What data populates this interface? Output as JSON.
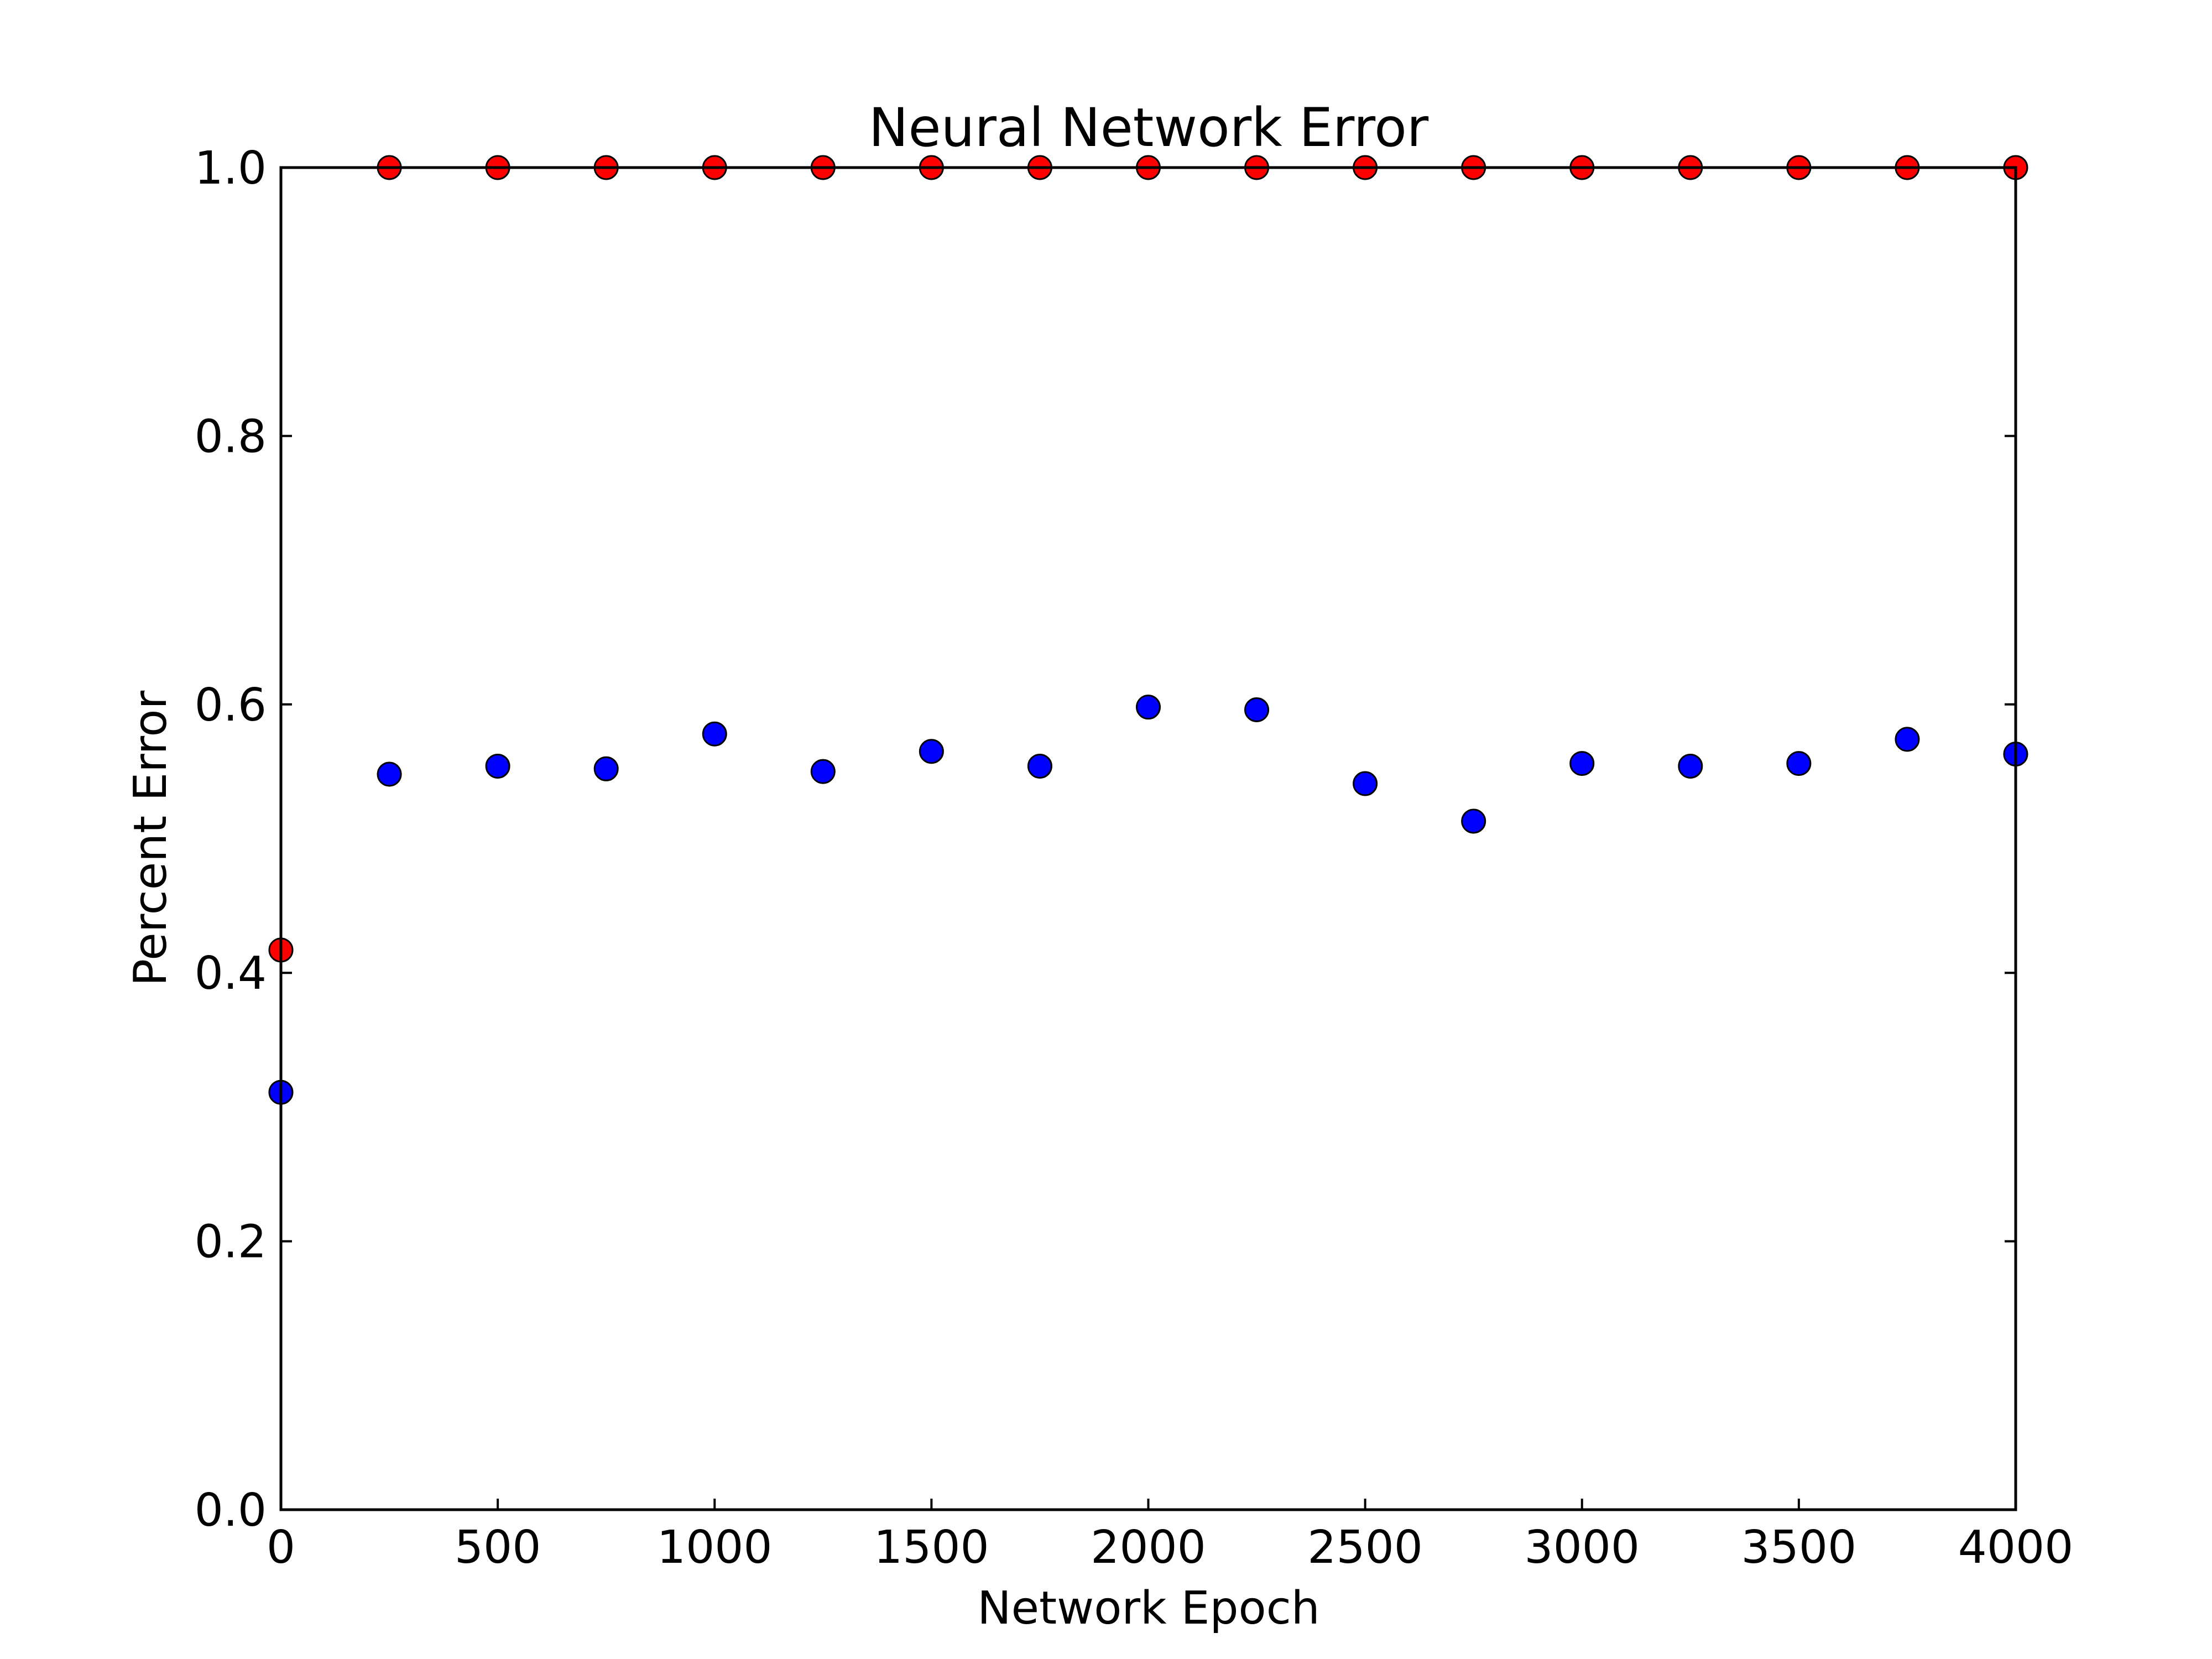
{
  "chart_data": {
    "type": "scatter",
    "title": "Neural Network Error",
    "xlabel": "Network Epoch",
    "ylabel": "Percent Error",
    "xlim": [
      0,
      4000
    ],
    "ylim": [
      0.0,
      1.0
    ],
    "x_ticks": [
      "0",
      "500",
      "1000",
      "1500",
      "2000",
      "2500",
      "3000",
      "3500",
      "4000"
    ],
    "y_ticks": [
      "0.0",
      "0.2",
      "0.4",
      "0.6",
      "0.8",
      "1.0"
    ],
    "grid": false,
    "legend": "none",
    "series": [
      {
        "color": "#ff0000",
        "x": [
          0,
          250,
          500,
          750,
          1000,
          1250,
          1500,
          1750,
          2000,
          2250,
          2500,
          2750,
          3000,
          3250,
          3500,
          3750,
          4000
        ],
        "y": [
          0.417,
          1.0,
          1.0,
          1.0,
          1.0,
          1.0,
          1.0,
          1.0,
          1.0,
          1.0,
          1.0,
          1.0,
          1.0,
          1.0,
          1.0,
          1.0,
          1.0
        ]
      },
      {
        "color": "#0000ff",
        "x": [
          0,
          250,
          500,
          750,
          1000,
          1250,
          1500,
          1750,
          2000,
          2250,
          2500,
          2750,
          3000,
          3250,
          3500,
          3750,
          4000
        ],
        "y": [
          0.311,
          0.548,
          0.554,
          0.552,
          0.578,
          0.55,
          0.565,
          0.554,
          0.598,
          0.596,
          0.541,
          0.513,
          0.556,
          0.554,
          0.556,
          0.574,
          0.563
        ]
      }
    ]
  }
}
